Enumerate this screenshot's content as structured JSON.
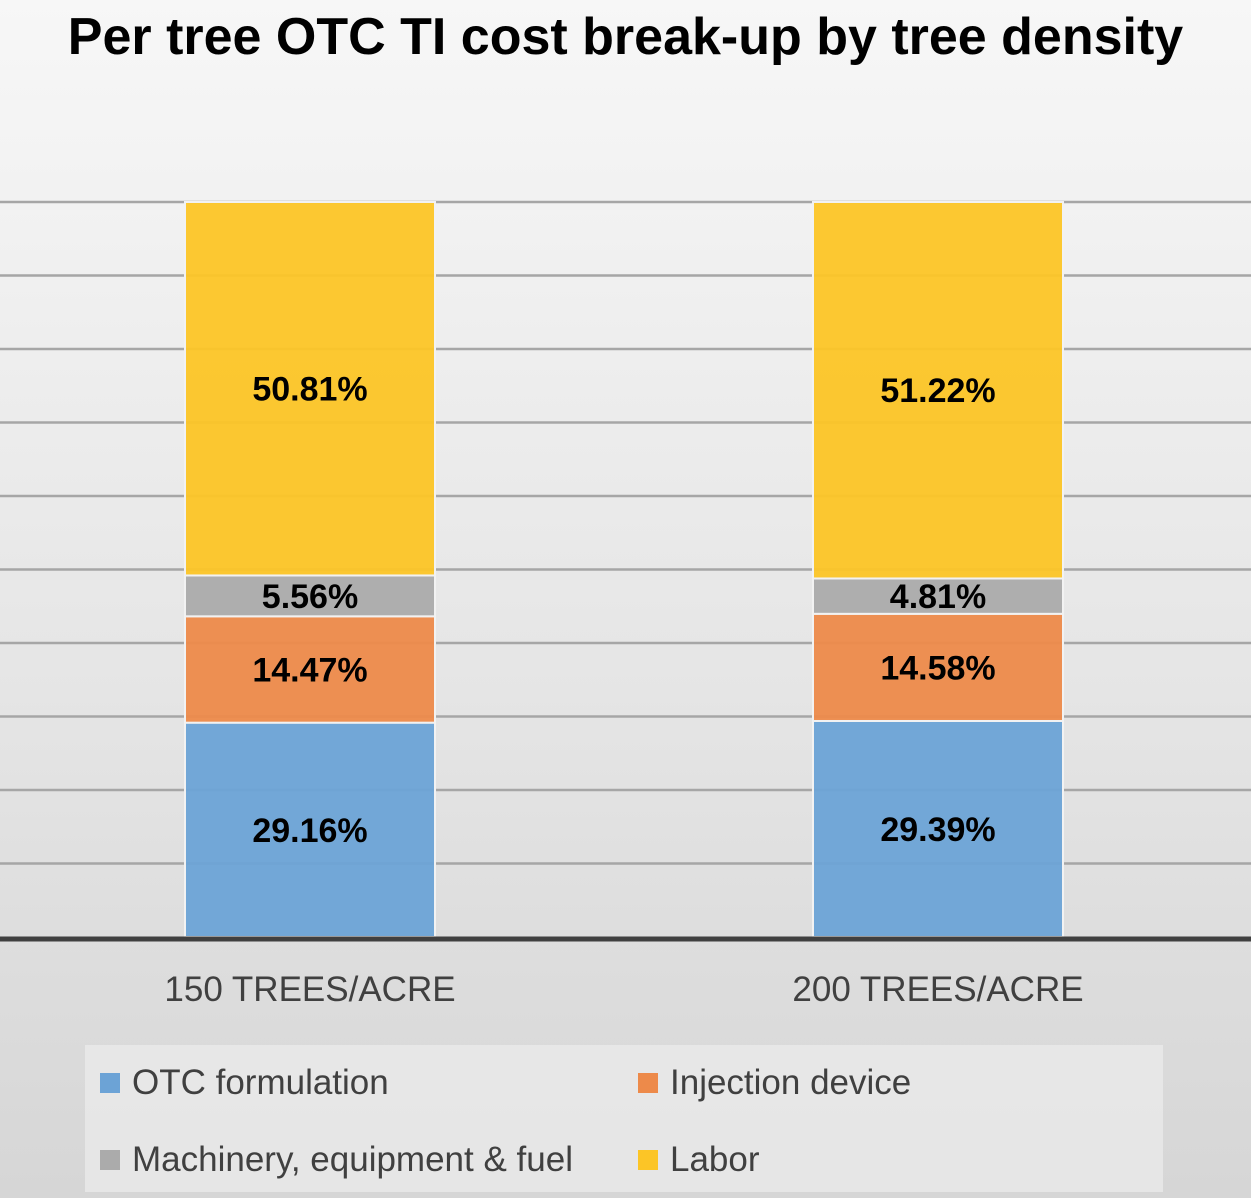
{
  "chart_data": {
    "type": "bar",
    "stacked": true,
    "title": "Per tree OTC TI cost break-up by tree density",
    "categories": [
      "150 TREES/ACRE",
      "200 TREES/ACRE"
    ],
    "series": [
      {
        "name": "OTC formulation",
        "values": [
          29.16,
          29.39
        ],
        "labels": [
          "29.16%",
          "29.39%"
        ],
        "color": "#6ca3d6"
      },
      {
        "name": "Injection device",
        "values": [
          14.47,
          14.58
        ],
        "labels": [
          "14.47%",
          "14.58%"
        ],
        "color": "#ed8a4a"
      },
      {
        "name": "Machinery, equipment & fuel",
        "values": [
          5.56,
          4.81
        ],
        "labels": [
          "5.56%",
          "4.81%"
        ],
        "color": "#ababab"
      },
      {
        "name": "Labor",
        "values": [
          50.81,
          51.22
        ],
        "labels": [
          "50.81%",
          "51.22%"
        ],
        "color": "#fcc526"
      }
    ],
    "ylim": [
      0,
      100
    ],
    "grid": true,
    "legend_position": "bottom"
  }
}
